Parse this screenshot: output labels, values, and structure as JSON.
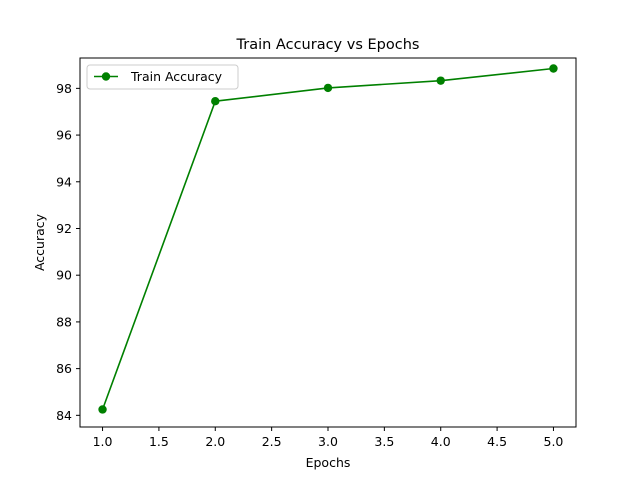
{
  "chart_data": {
    "type": "line",
    "title": "Train Accuracy vs Epochs",
    "xlabel": "Epochs",
    "ylabel": "Accuracy",
    "xlim": [
      0.8,
      5.2
    ],
    "ylim": [
      83.5,
      99.3
    ],
    "x_ticks": [
      1.0,
      1.5,
      2.0,
      2.5,
      3.0,
      3.5,
      4.0,
      4.5,
      5.0
    ],
    "x_tick_labels": [
      "1.0",
      "1.5",
      "2.0",
      "2.5",
      "3.0",
      "3.5",
      "4.0",
      "4.5",
      "5.0"
    ],
    "y_ticks": [
      84,
      86,
      88,
      90,
      92,
      94,
      96,
      98
    ],
    "y_tick_labels": [
      "84",
      "86",
      "88",
      "90",
      "92",
      "94",
      "96",
      "98"
    ],
    "grid": false,
    "legend_position": "top-left",
    "series": [
      {
        "name": "Train Accuracy",
        "color": "#008000",
        "marker": "circle",
        "x": [
          1,
          2,
          3,
          4,
          5
        ],
        "y": [
          84.25,
          97.45,
          98.02,
          98.33,
          98.85
        ]
      }
    ]
  }
}
